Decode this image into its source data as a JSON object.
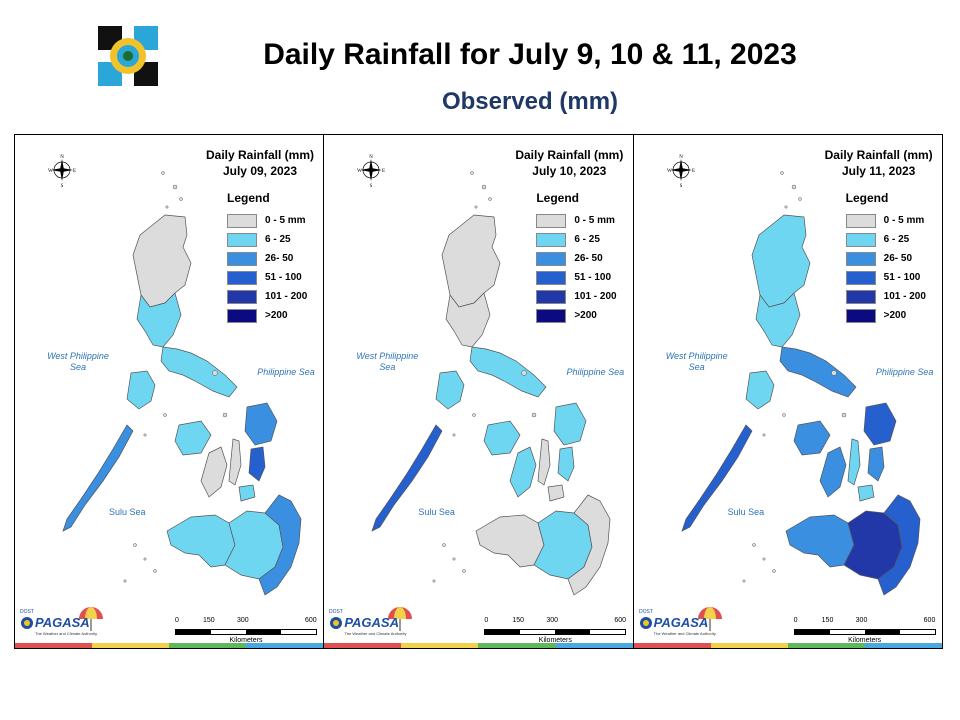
{
  "header": {
    "title": "Daily Rainfall for July 9, 10 & 11, 2023",
    "subtitle": "Observed (mm)"
  },
  "legend": {
    "title": "Legend",
    "classes": [
      {
        "label": "0 - 5 mm",
        "color": "#dcdcdc"
      },
      {
        "label": "6 - 25",
        "color": "#6fd6f2"
      },
      {
        "label": "26- 50",
        "color": "#3a8fe0"
      },
      {
        "label": "51 - 100",
        "color": "#2660cf"
      },
      {
        "label": "101 - 200",
        "color": "#2338a8"
      },
      {
        "label": ">200",
        "color": "#0c0a80"
      }
    ]
  },
  "labels": {
    "west_sea": "West Philippine Sea",
    "east_sea": "Philippine Sea",
    "sulu_sea": "Sulu Sea",
    "compass_n": "N",
    "compass_s": "S",
    "compass_e": "E",
    "compass_w": "W",
    "scale_ticks": [
      "0",
      "150",
      "300",
      "600"
    ],
    "scale_unit": "Kilometers",
    "agency": "PAGASA",
    "agency_dost": "DOST",
    "agency_tagline": "The Weather and Climate Authority"
  },
  "panels": [
    {
      "title": "Daily Rainfall (mm)",
      "date": "July 09, 2023",
      "regions": {
        "luzon_north": 0,
        "luzon_central": 1,
        "luzon_south": 1,
        "mindoro": 1,
        "palawan": 2,
        "panay": 1,
        "negros": 0,
        "cebu": 0,
        "samar": 2,
        "leyte": 3,
        "bohol": 1,
        "mindanao_west": 1,
        "mindanao_central": 1,
        "mindanao_east": 2
      }
    },
    {
      "title": "Daily Rainfall (mm)",
      "date": "July 10, 2023",
      "regions": {
        "luzon_north": 0,
        "luzon_central": 0,
        "luzon_south": 1,
        "mindoro": 1,
        "palawan": 3,
        "panay": 1,
        "negros": 1,
        "cebu": 0,
        "samar": 1,
        "leyte": 1,
        "bohol": 0,
        "mindanao_west": 0,
        "mindanao_central": 1,
        "mindanao_east": 0
      }
    },
    {
      "title": "Daily Rainfall (mm)",
      "date": "July 11, 2023",
      "regions": {
        "luzon_north": 1,
        "luzon_central": 1,
        "luzon_south": 2,
        "mindoro": 1,
        "palawan": 3,
        "panay": 2,
        "negros": 2,
        "cebu": 1,
        "samar": 3,
        "leyte": 2,
        "bohol": 1,
        "mindanao_west": 2,
        "mindanao_central": 4,
        "mindanao_east": 3
      }
    }
  ],
  "colors": {
    "stripe": [
      "#e05050",
      "#f2d24a",
      "#5fb95a",
      "#4aa8e0"
    ]
  }
}
